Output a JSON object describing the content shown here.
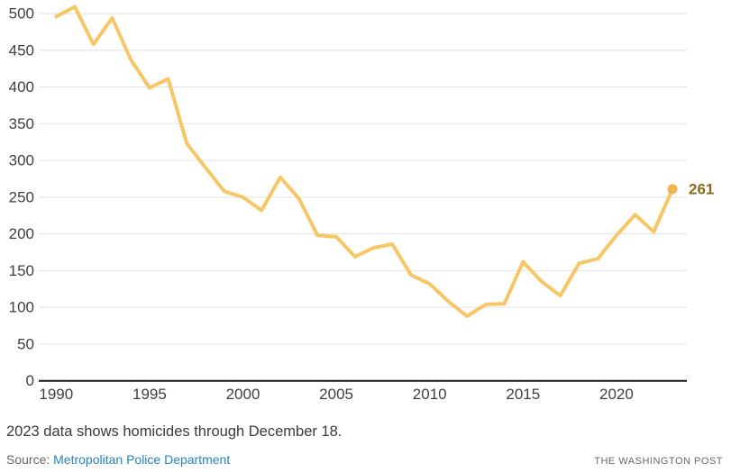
{
  "chart_data": {
    "type": "line",
    "title": "",
    "xlabel": "",
    "ylabel": "",
    "x": [
      1990,
      1991,
      1992,
      1993,
      1994,
      1995,
      1996,
      1997,
      1998,
      1999,
      2000,
      2001,
      2002,
      2003,
      2004,
      2005,
      2006,
      2007,
      2008,
      2009,
      2010,
      2011,
      2012,
      2013,
      2014,
      2015,
      2016,
      2017,
      2018,
      2019,
      2020,
      2021,
      2022,
      2023
    ],
    "values": [
      496,
      509,
      458,
      494,
      437,
      399,
      411,
      323,
      290,
      258,
      250,
      232,
      277,
      248,
      198,
      196,
      169,
      181,
      186,
      144,
      132,
      108,
      88,
      104,
      105,
      162,
      135,
      116,
      160,
      166,
      198,
      226,
      203,
      261
    ],
    "ylim": [
      0,
      500
    ],
    "yticks": [
      0,
      50,
      100,
      150,
      200,
      250,
      300,
      350,
      400,
      450,
      500
    ],
    "xticks": [
      1990,
      1995,
      2000,
      2005,
      2010,
      2015,
      2020
    ],
    "grid": "horizontal",
    "legend": "none",
    "endpoint": {
      "year": 2023,
      "value": 261,
      "label": "261"
    }
  },
  "footer": {
    "note": "2023 data shows homicides through December 18.",
    "source_label": "Source:",
    "source_link_text": "Metropolitan Police Department",
    "branding": "THE WASHINGTON POST"
  },
  "colors": {
    "line": "#F6C667",
    "endpoint_dot": "#EDB452",
    "endpoint_label": "#8A6A1C",
    "gridline": "#E2E2E2",
    "axis_line": "#151515",
    "tick_label": "#3f3f3f",
    "link": "#2583c0"
  }
}
